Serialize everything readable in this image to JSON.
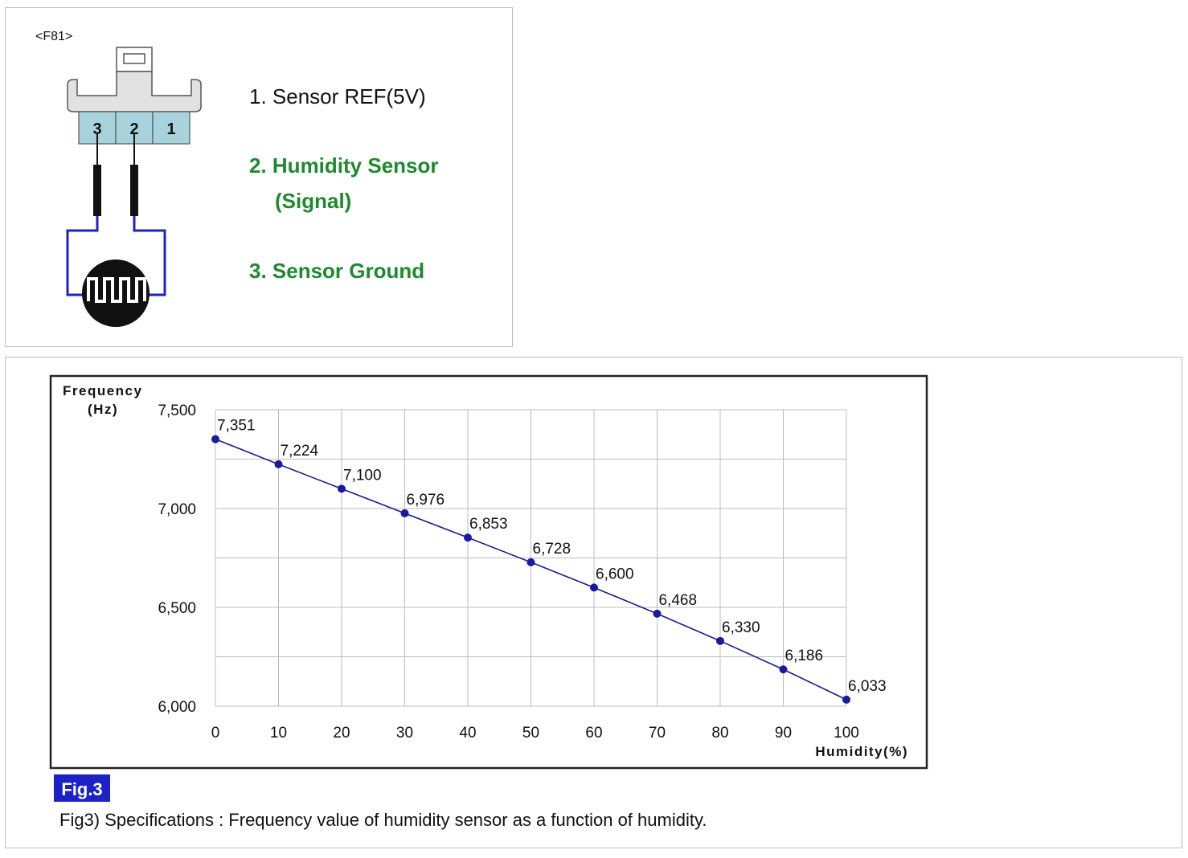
{
  "connector": {
    "id_label": "<F81>",
    "pin_numbers": [
      "3",
      "2",
      "1"
    ],
    "pins": {
      "p1": "1. Sensor REF(5V)",
      "p2_line1": "2. Humidity Sensor",
      "p2_line2": "(Signal)",
      "p3": "3. Sensor Ground"
    },
    "colors": {
      "pin_text_highlight": "#1e8a2e",
      "wire": "#1d22c7",
      "connector_fill": "#a9d3dc"
    }
  },
  "figure": {
    "badge": "Fig.3",
    "caption": "Fig3) Specifications : Frequency value of humidity sensor as a function of humidity."
  },
  "chart_data": {
    "type": "line",
    "ylabel_line1": "Frequency",
    "ylabel_line2": "(Hz)",
    "xlabel": "Humidity(%)",
    "x": [
      0,
      10,
      20,
      30,
      40,
      50,
      60,
      70,
      80,
      90,
      100
    ],
    "series": [
      {
        "values": [
          7351,
          7224,
          7100,
          6976,
          6853,
          6728,
          6600,
          6468,
          6330,
          6186,
          6033
        ]
      }
    ],
    "data_labels": [
      "7,351",
      "7,224",
      "7,100",
      "6,976",
      "6,853",
      "6,728",
      "6,600",
      "6,468",
      "6,330",
      "6,186",
      "6,033"
    ],
    "x_ticks": [
      "0",
      "10",
      "20",
      "30",
      "40",
      "50",
      "60",
      "70",
      "80",
      "90",
      "100"
    ],
    "y_ticks": [
      {
        "value": 7500,
        "label": "7,500"
      },
      {
        "value": 7000,
        "label": "7,000"
      },
      {
        "value": 6500,
        "label": "6,500"
      },
      {
        "value": 6000,
        "label": "6,000"
      }
    ],
    "xlim": [
      0,
      100
    ],
    "ylim": [
      6000,
      7500
    ],
    "grid": true,
    "line_color": "#1a1a8c",
    "marker_color": "#1a1aa0"
  }
}
